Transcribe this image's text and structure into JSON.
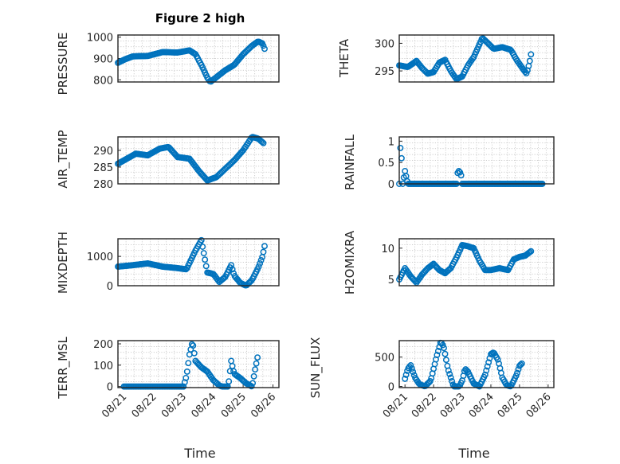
{
  "chart_data": [
    {
      "type": "scatter",
      "title": "Figure 2 high",
      "ylabel": "PRESSURE",
      "xlabel": "",
      "ylim": [
        790,
        1010
      ],
      "yticks": [
        800,
        900,
        1000
      ],
      "xlim": [
        0,
        5.4
      ],
      "keypoints": [
        [
          0,
          880
        ],
        [
          0.25,
          897
        ],
        [
          0.5,
          910
        ],
        [
          1.0,
          912
        ],
        [
          1.5,
          930
        ],
        [
          2.0,
          928
        ],
        [
          2.4,
          938
        ],
        [
          2.6,
          920
        ],
        [
          2.8,
          870
        ],
        [
          3.0,
          810
        ],
        [
          3.1,
          790
        ],
        [
          3.3,
          812
        ],
        [
          3.6,
          845
        ],
        [
          3.9,
          870
        ],
        [
          4.2,
          920
        ],
        [
          4.5,
          960
        ],
        [
          4.7,
          980
        ],
        [
          4.85,
          970
        ],
        [
          4.95,
          935
        ]
      ]
    },
    {
      "type": "scatter",
      "ylabel": "THETA",
      "xlabel": "",
      "ylim": [
        293,
        301.5
      ],
      "yticks": [
        295,
        300
      ],
      "xlim": [
        0,
        5.4
      ],
      "keypoints": [
        [
          0,
          296
        ],
        [
          0.3,
          295.7
        ],
        [
          0.6,
          296.8
        ],
        [
          0.8,
          295.5
        ],
        [
          1.0,
          294.5
        ],
        [
          1.2,
          294.8
        ],
        [
          1.4,
          296.5
        ],
        [
          1.6,
          297
        ],
        [
          1.8,
          295
        ],
        [
          2.0,
          293.5
        ],
        [
          2.2,
          294
        ],
        [
          2.4,
          296
        ],
        [
          2.6,
          297.5
        ],
        [
          2.8,
          299.8
        ],
        [
          2.9,
          301
        ],
        [
          3.1,
          300
        ],
        [
          3.3,
          299
        ],
        [
          3.6,
          299.3
        ],
        [
          3.9,
          298.8
        ],
        [
          4.1,
          297
        ],
        [
          4.3,
          295.5
        ],
        [
          4.45,
          294.5
        ],
        [
          4.55,
          296.5
        ],
        [
          4.6,
          298
        ]
      ]
    },
    {
      "type": "scatter",
      "ylabel": "AIR_TEMP",
      "xlabel": "",
      "ylim": [
        280,
        294
      ],
      "yticks": [
        280,
        285,
        290
      ],
      "xlim": [
        0,
        5.4
      ],
      "keypoints": [
        [
          0,
          286
        ],
        [
          0.3,
          287.5
        ],
        [
          0.6,
          289
        ],
        [
          1.0,
          288.5
        ],
        [
          1.4,
          290.5
        ],
        [
          1.7,
          291
        ],
        [
          2.0,
          288
        ],
        [
          2.4,
          287.5
        ],
        [
          2.7,
          284
        ],
        [
          3.0,
          281
        ],
        [
          3.3,
          282
        ],
        [
          3.6,
          284.5
        ],
        [
          3.9,
          287
        ],
        [
          4.2,
          290
        ],
        [
          4.5,
          294
        ],
        [
          4.7,
          293.5
        ],
        [
          4.9,
          292
        ]
      ]
    },
    {
      "type": "scatter",
      "ylabel": "RAINFALL",
      "xlabel": "",
      "ylim": [
        0,
        1.1
      ],
      "yticks": [
        0,
        0.5,
        1
      ],
      "xlim": [
        0,
        5.4
      ],
      "keypoints": [
        [
          0,
          0
        ],
        [
          0.05,
          1.05
        ],
        [
          0.12,
          0
        ],
        [
          0.2,
          0.3
        ],
        [
          0.3,
          0
        ],
        [
          2.0,
          0
        ],
        [
          2.05,
          0.32
        ],
        [
          2.15,
          0.25
        ],
        [
          2.2,
          0
        ],
        [
          5.0,
          0
        ]
      ]
    },
    {
      "type": "scatter",
      "ylabel": "MIXDEPTH",
      "xlabel": "",
      "ylim": [
        0,
        1600
      ],
      "yticks": [
        0,
        1000
      ],
      "xlim": [
        0,
        5.4
      ],
      "keypoints": [
        [
          0,
          650
        ],
        [
          0.5,
          700
        ],
        [
          1.0,
          760
        ],
        [
          1.5,
          650
        ],
        [
          2.0,
          600
        ],
        [
          2.3,
          560
        ],
        [
          2.6,
          1200
        ],
        [
          2.8,
          1550
        ],
        [
          3.0,
          450
        ],
        [
          3.2,
          400
        ],
        [
          3.4,
          130
        ],
        [
          3.6,
          300
        ],
        [
          3.8,
          700
        ],
        [
          3.9,
          350
        ],
        [
          4.1,
          100
        ],
        [
          4.3,
          0
        ],
        [
          4.5,
          200
        ],
        [
          4.7,
          600
        ],
        [
          4.85,
          1000
        ],
        [
          4.95,
          1500
        ]
      ]
    },
    {
      "type": "scatter",
      "ylabel": "H2OMIXRA",
      "xlabel": "",
      "ylim": [
        4,
        11.5
      ],
      "yticks": [
        5,
        10
      ],
      "xlim": [
        0,
        5.4
      ],
      "keypoints": [
        [
          0,
          5
        ],
        [
          0.2,
          6.8
        ],
        [
          0.4,
          5.5
        ],
        [
          0.6,
          4.5
        ],
        [
          0.8,
          5.8
        ],
        [
          1.0,
          6.8
        ],
        [
          1.2,
          7.5
        ],
        [
          1.4,
          6.5
        ],
        [
          1.6,
          6
        ],
        [
          1.8,
          6.8
        ],
        [
          2.0,
          8.5
        ],
        [
          2.2,
          10.5
        ],
        [
          2.4,
          10.3
        ],
        [
          2.6,
          10
        ],
        [
          2.8,
          8
        ],
        [
          3.0,
          6.5
        ],
        [
          3.2,
          6.5
        ],
        [
          3.5,
          6.8
        ],
        [
          3.8,
          6.5
        ],
        [
          4.0,
          8.2
        ],
        [
          4.2,
          8.6
        ],
        [
          4.4,
          8.8
        ],
        [
          4.6,
          9.5
        ]
      ]
    },
    {
      "type": "scatter",
      "ylabel": "TERR_MSL",
      "xlabel": "Time",
      "ylim": [
        -5,
        215
      ],
      "yticks": [
        0,
        100,
        200
      ],
      "xlim": [
        -0.2,
        5.2
      ],
      "xticklabels": [
        "08/21",
        "08/22",
        "08/23",
        "08/24",
        "08/25",
        "08/26"
      ],
      "keypoints": [
        [
          0,
          0
        ],
        [
          2.0,
          0
        ],
        [
          2.1,
          50
        ],
        [
          2.2,
          150
        ],
        [
          2.3,
          210
        ],
        [
          2.4,
          120
        ],
        [
          2.6,
          90
        ],
        [
          2.8,
          70
        ],
        [
          3.0,
          30
        ],
        [
          3.2,
          5
        ],
        [
          3.3,
          0
        ],
        [
          3.5,
          0
        ],
        [
          3.6,
          120
        ],
        [
          3.7,
          60
        ],
        [
          3.9,
          40
        ],
        [
          4.1,
          15
        ],
        [
          4.3,
          0
        ],
        [
          4.4,
          80
        ],
        [
          4.5,
          150
        ]
      ]
    },
    {
      "type": "scatter",
      "ylabel": "SUN_FLUX",
      "xlabel": "Time",
      "ylim": [
        -20,
        780
      ],
      "yticks": [
        0,
        500
      ],
      "xlim": [
        -0.2,
        5.2
      ],
      "xticklabels": [
        "08/21",
        "08/22",
        "08/23",
        "08/24",
        "08/25",
        "08/26"
      ],
      "keypoints": [
        [
          0,
          130
        ],
        [
          0.1,
          300
        ],
        [
          0.2,
          360
        ],
        [
          0.35,
          150
        ],
        [
          0.5,
          40
        ],
        [
          0.7,
          0
        ],
        [
          0.9,
          100
        ],
        [
          1.1,
          500
        ],
        [
          1.25,
          760
        ],
        [
          1.35,
          680
        ],
        [
          1.5,
          300
        ],
        [
          1.7,
          0
        ],
        [
          1.9,
          0
        ],
        [
          2.0,
          100
        ],
        [
          2.1,
          300
        ],
        [
          2.2,
          250
        ],
        [
          2.4,
          50
        ],
        [
          2.6,
          0
        ],
        [
          2.8,
          200
        ],
        [
          3.0,
          550
        ],
        [
          3.1,
          580
        ],
        [
          3.25,
          450
        ],
        [
          3.4,
          150
        ],
        [
          3.55,
          20
        ],
        [
          3.7,
          0
        ],
        [
          3.9,
          200
        ],
        [
          4.0,
          350
        ],
        [
          4.1,
          400
        ]
      ]
    }
  ]
}
